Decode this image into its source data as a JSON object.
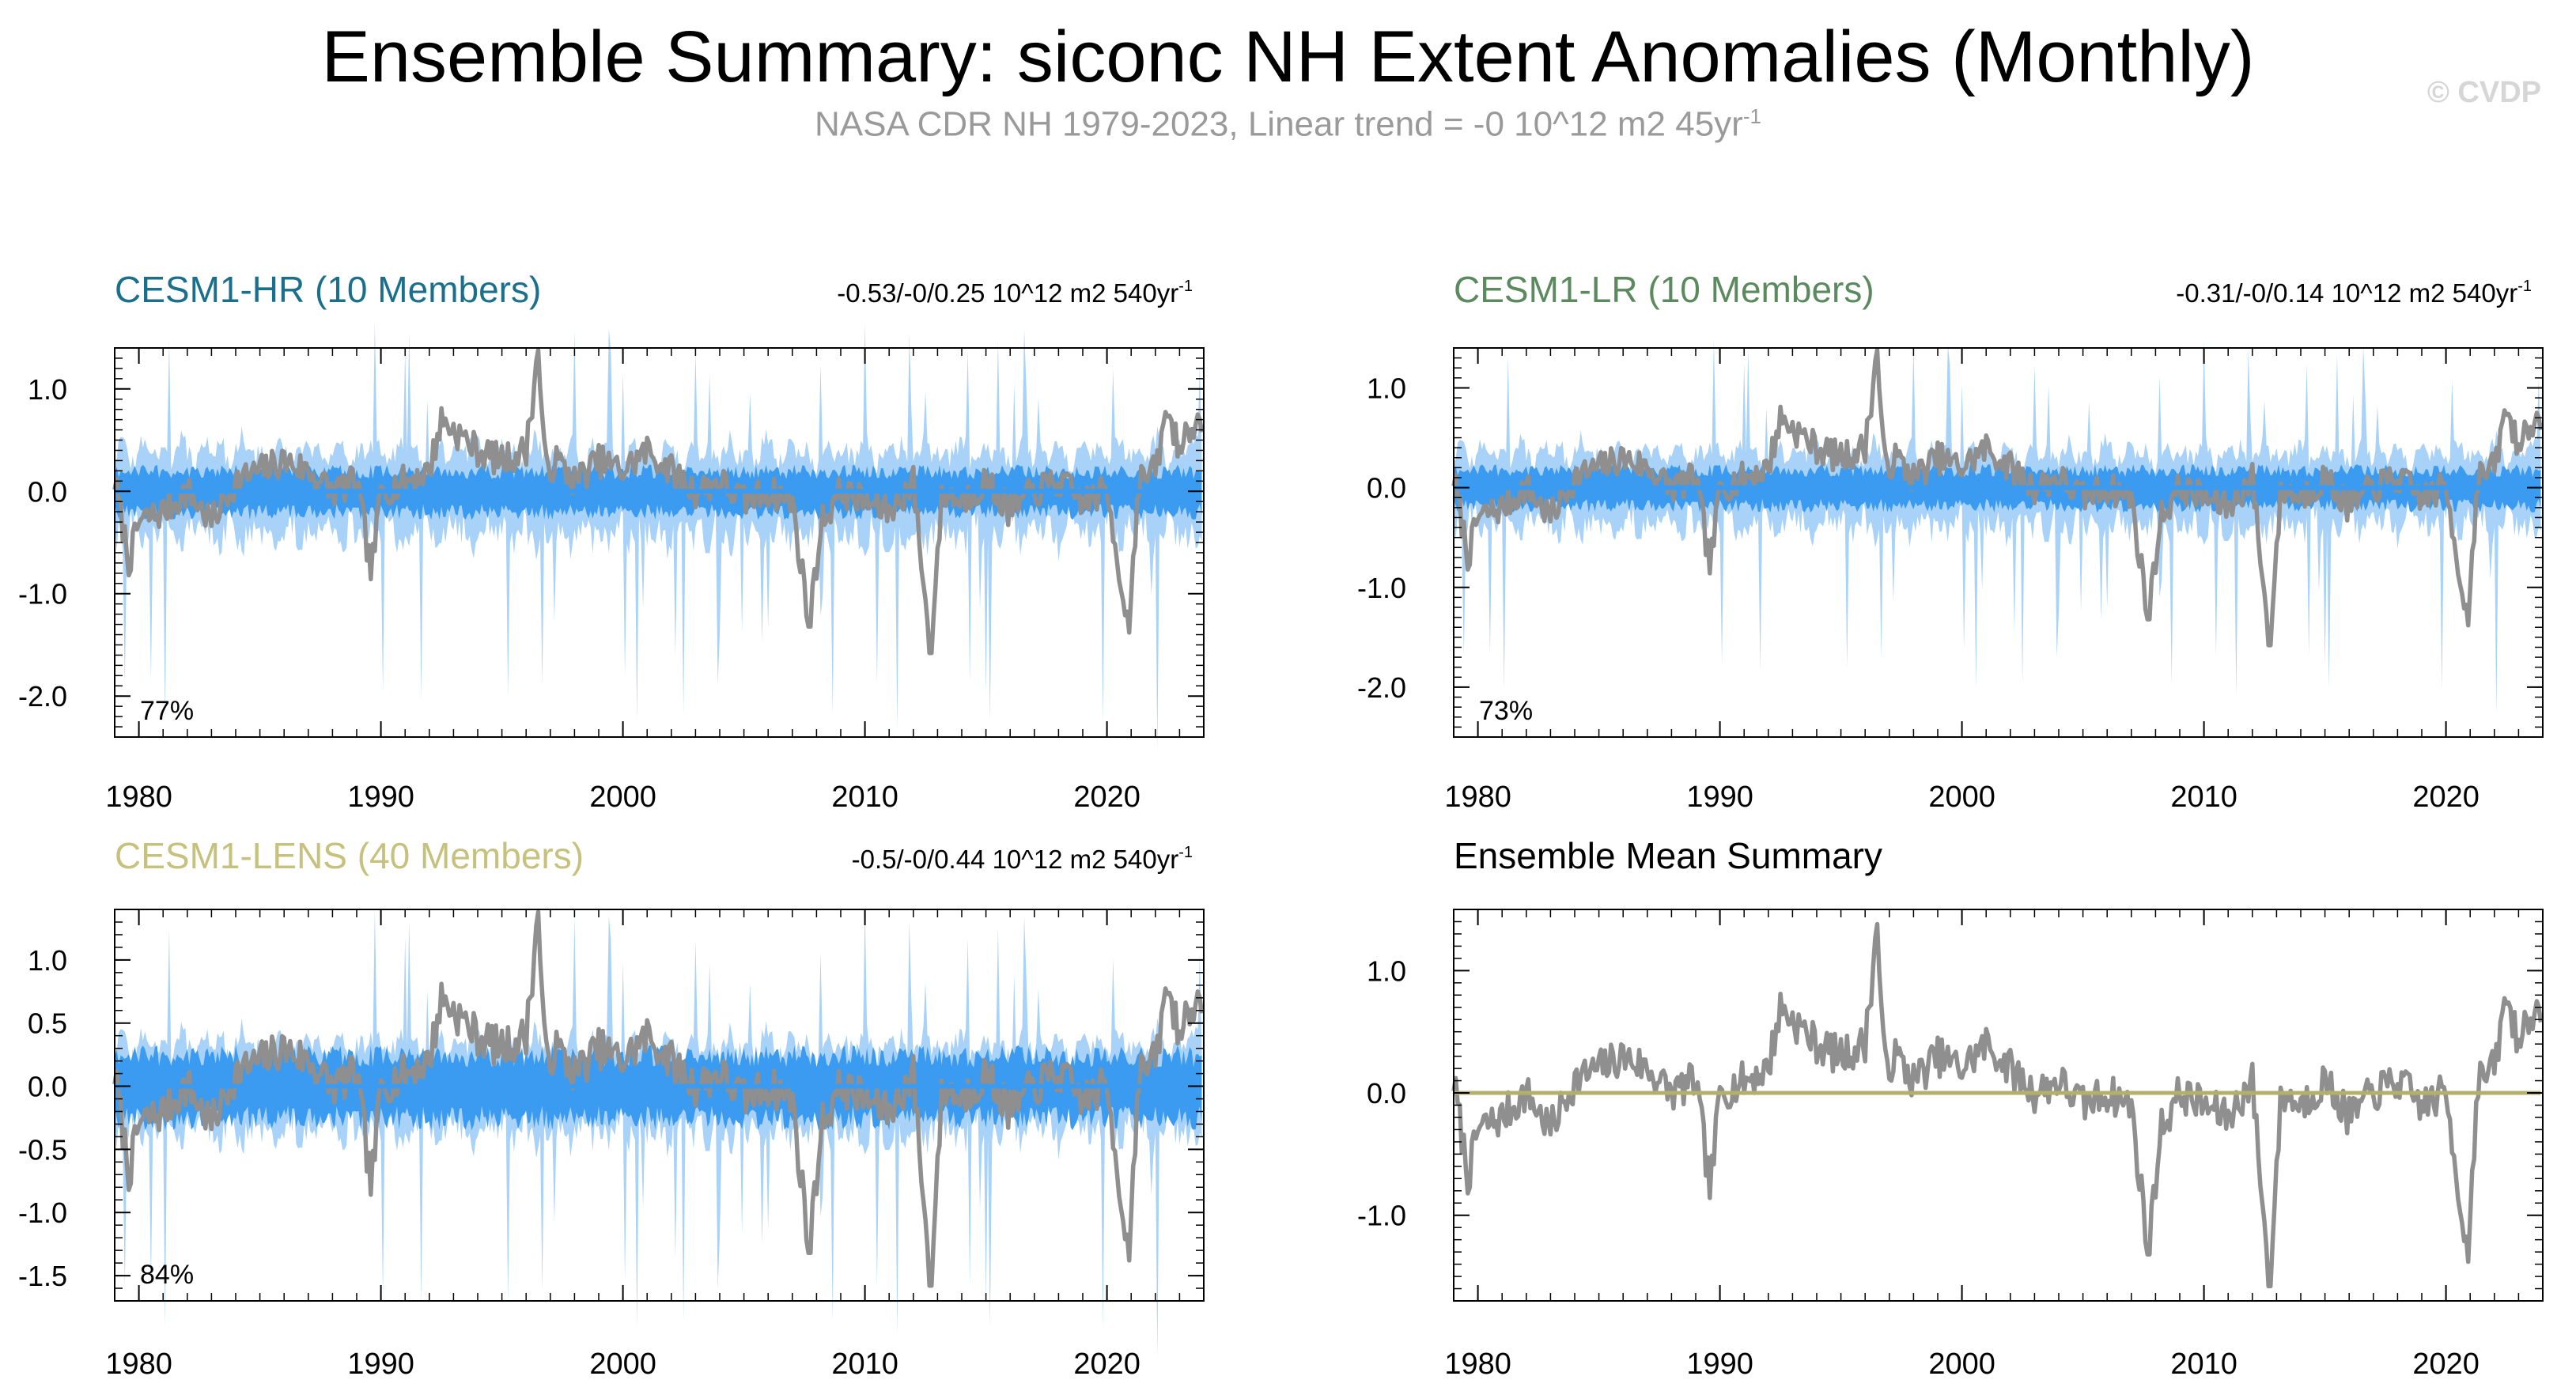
{
  "title": "Ensemble Summary: siconc NH Extent Anomalies (Monthly)",
  "subtitle": {
    "text": "NASA CDR NH 1979-2023, Linear trend = -0 10^12 m2 45yr",
    "superscript": "-1"
  },
  "watermark": "© CVDP",
  "colors": {
    "observed": "#8f8f8f",
    "ensemble_range": "#a9d2f8",
    "ensemble_iqr": "#3a9bf0",
    "ensemble_mean": "#3a9bf0",
    "hr_title": "#1a6f8c",
    "lr_title": "#5a8a5e",
    "lens_title": "#c6c27e",
    "mean_title": "#000000",
    "mean_line": "#b2b06c"
  },
  "chart_data": [
    {
      "id": "cesm1-hr",
      "type": "area",
      "title": "CESM1-HR (10 Members)",
      "title_color_key": "hr_title",
      "trend_label": "-0.53/-0/0.25 10^12 m2 540yr",
      "trend_superscript": "-1",
      "percent_label": "77%",
      "x_range": [
        1979,
        2024
      ],
      "x_ticks": [
        1980,
        1990,
        2000,
        2010,
        2020
      ],
      "ylim": [
        -2.4,
        1.4
      ],
      "y_ticks": [
        1.0,
        0.0,
        -1.0,
        -2.0
      ],
      "y_tick_labels": [
        "1.0",
        "0.0",
        "-1.0",
        "-2.0"
      ],
      "range_scale": 1.0,
      "iqr_scale": 1.0,
      "mean_line_color_key": "ensemble_mean",
      "series": [
        "observed anomaly",
        "ensemble 10-90% range",
        "ensemble IQR",
        "ensemble mean"
      ]
    },
    {
      "id": "cesm1-lr",
      "type": "area",
      "title": "CESM1-LR (10 Members)",
      "title_color_key": "lr_title",
      "trend_label": "-0.31/-0/0.14 10^12 m2 540yr",
      "trend_superscript": "-1",
      "percent_label": "73%",
      "x_range": [
        1979,
        2024
      ],
      "x_ticks": [
        1980,
        1990,
        2000,
        2010,
        2020
      ],
      "ylim": [
        -2.5,
        1.4
      ],
      "y_ticks": [
        1.0,
        0.0,
        -1.0,
        -2.0
      ],
      "y_tick_labels": [
        "1.0",
        "0.0",
        "-1.0",
        "-2.0"
      ],
      "range_scale": 0.9,
      "iqr_scale": 0.9,
      "mean_line_color_key": "ensemble_mean",
      "series": [
        "observed anomaly",
        "ensemble 10-90% range",
        "ensemble IQR",
        "ensemble mean"
      ]
    },
    {
      "id": "cesm1-lens",
      "type": "area",
      "title": "CESM1-LENS (40 Members)",
      "title_color_key": "lens_title",
      "trend_label": "-0.5/-0/0.44 10^12 m2 540yr",
      "trend_superscript": "-1",
      "percent_label": "84%",
      "x_range": [
        1979,
        2024
      ],
      "x_ticks": [
        1980,
        1990,
        2000,
        2010,
        2020
      ],
      "ylim": [
        -1.7,
        1.4
      ],
      "y_ticks": [
        1.0,
        0.5,
        0.0,
        -0.5,
        -1.0,
        -1.5
      ],
      "y_tick_labels": [
        "1.0",
        "0.5",
        "0.0",
        "-0.5",
        "-1.0",
        "-1.5"
      ],
      "range_scale": 0.85,
      "iqr_scale": 1.25,
      "mean_line_color_key": "ensemble_mean",
      "series": [
        "observed anomaly",
        "ensemble 10-90% range",
        "ensemble IQR",
        "ensemble mean"
      ]
    },
    {
      "id": "ensemble-mean-summary",
      "type": "line",
      "title": "Ensemble Mean Summary",
      "title_color_key": "mean_title",
      "trend_label": "",
      "trend_superscript": "",
      "percent_label": "",
      "x_range": [
        1979,
        2024
      ],
      "x_ticks": [
        1980,
        1990,
        2000,
        2010,
        2020
      ],
      "ylim": [
        -1.7,
        1.5
      ],
      "y_ticks": [
        1.0,
        0.0,
        -1.0
      ],
      "y_tick_labels": [
        "1.0",
        "0.0",
        "-1.0"
      ],
      "range_scale": 0,
      "iqr_scale": 0,
      "mean_line_color_key": "mean_line",
      "series": [
        "observed anomaly",
        "ensemble mean"
      ]
    }
  ],
  "observed_anchors": {
    "note": "observed monthly anomaly (10^12 m2) sampled at key times, same in all panels",
    "years": [
      1979.0,
      1979.3,
      1979.6,
      1980.0,
      1981.0,
      1982.0,
      1983.0,
      1984.0,
      1985.0,
      1986.0,
      1987.0,
      1988.0,
      1989.0,
      1989.6,
      1990.0,
      1991.0,
      1992.0,
      1992.5,
      1993.0,
      1994.0,
      1995.0,
      1996.0,
      1996.5,
      1996.8,
      1997.3,
      1998.0,
      1999.0,
      2000.0,
      2001.0,
      2002.0,
      2003.0,
      2004.0,
      2005.0,
      2006.0,
      2007.0,
      2007.7,
      2008.2,
      2009.0,
      2010.0,
      2011.0,
      2012.0,
      2012.7,
      2013.2,
      2014.0,
      2015.0,
      2016.0,
      2017.0,
      2018.0,
      2019.0,
      2020.0,
      2020.9,
      2021.3,
      2022.0,
      2022.5,
      2023.0,
      2023.5,
      2024.0
    ],
    "values": [
      0.1,
      -0.3,
      -0.7,
      -0.3,
      -0.2,
      0.0,
      -0.3,
      0.1,
      0.2,
      0.3,
      0.2,
      0.0,
      0.1,
      -0.8,
      0.0,
      0.1,
      0.2,
      0.7,
      0.6,
      0.4,
      0.3,
      0.4,
      1.35,
      0.2,
      0.3,
      0.1,
      0.3,
      0.2,
      0.4,
      0.2,
      0.0,
      0.1,
      -0.1,
      0.0,
      -0.1,
      -1.3,
      -0.3,
      0.0,
      -0.1,
      -0.2,
      0.1,
      -1.55,
      0.0,
      -0.1,
      0.1,
      -0.2,
      0.0,
      0.1,
      -0.1,
      0.0,
      -1.35,
      0.1,
      0.2,
      0.8,
      0.4,
      0.7,
      0.5
    ]
  }
}
